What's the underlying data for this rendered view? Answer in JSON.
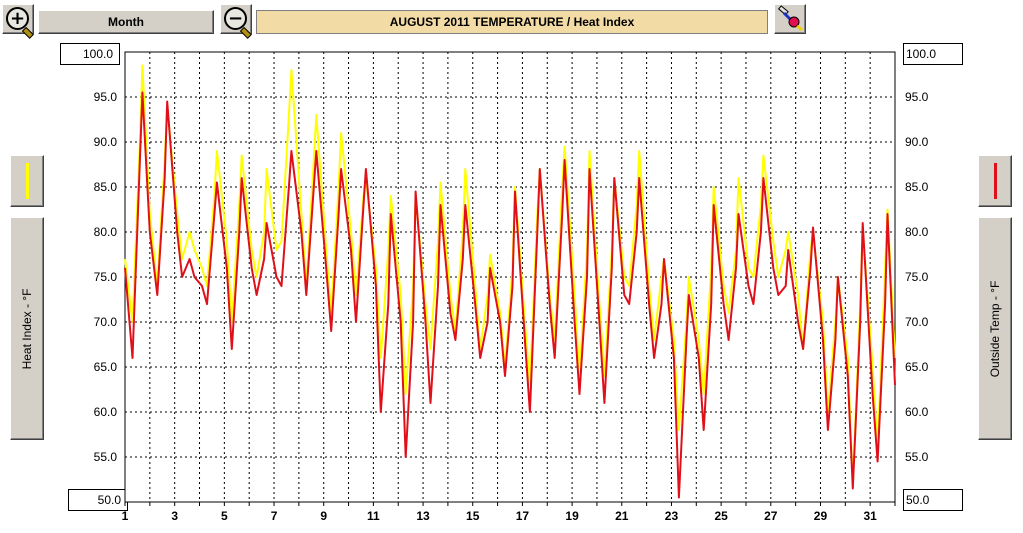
{
  "toolbar": {
    "zoom_in_icon": "zoom-in-magnifier-icon",
    "zoom_out_icon": "zoom-out-magnifier-icon",
    "period_button_label": "Month",
    "options_icon": "paint-brush-icon"
  },
  "colors": {
    "heat_index": "#ffff00",
    "outside_temp": "#e0101a",
    "title_bg": "#f3dba6",
    "button_face": "#d4d0c8"
  },
  "left_panel": {
    "axis_title": "Heat Index - °F",
    "swatch": "heat-index-legend"
  },
  "right_panel": {
    "axis_title": "Outside Temp - °F",
    "swatch": "outside-temp-legend"
  },
  "limits": {
    "left_top": "100.0",
    "left_bottom": "50.0",
    "right_top": "100.0",
    "right_bottom": "50.0"
  },
  "chart_data": {
    "type": "line",
    "title": "AUGUST 2011  TEMPERATURE / Heat Index",
    "xlabel": "",
    "ylabel_left": "Heat Index - °F",
    "ylabel_right": "Outside Temp - °F",
    "xlim": [
      1,
      32
    ],
    "ylim": [
      50,
      100
    ],
    "grid": true,
    "x_ticks": [
      "1",
      "3",
      "5",
      "7",
      "9",
      "11",
      "13",
      "15",
      "17",
      "19",
      "21",
      "23",
      "25",
      "27",
      "29",
      "31"
    ],
    "y_ticks": [
      "95.0",
      "90.0",
      "85.0",
      "80.0",
      "75.0",
      "70.0",
      "65.0",
      "60.0",
      "55.0"
    ],
    "series": [
      {
        "name": "Heat Index",
        "color": "#ffff00",
        "x": [
          1.0,
          1.3,
          1.6,
          1.7,
          2.0,
          2.3,
          2.6,
          2.7,
          3.1,
          3.3,
          3.6,
          3.8,
          4.1,
          4.3,
          4.6,
          4.7,
          5.1,
          5.3,
          5.6,
          5.7,
          6.1,
          6.3,
          6.6,
          6.7,
          7.1,
          7.3,
          7.6,
          7.7,
          8.1,
          8.3,
          8.6,
          8.7,
          9.1,
          9.3,
          9.6,
          9.7,
          10.1,
          10.3,
          10.6,
          10.7,
          11.1,
          11.3,
          11.6,
          11.7,
          12.1,
          12.3,
          12.6,
          12.7,
          13.1,
          13.3,
          13.6,
          13.7,
          14.1,
          14.3,
          14.6,
          14.7,
          15.1,
          15.3,
          15.6,
          15.7,
          16.1,
          16.3,
          16.6,
          16.7,
          17.1,
          17.3,
          17.6,
          17.7,
          18.1,
          18.3,
          18.6,
          18.7,
          19.1,
          19.3,
          19.6,
          19.7,
          20.1,
          20.3,
          20.6,
          20.7,
          21.1,
          21.3,
          21.6,
          21.7,
          22.1,
          22.3,
          22.6,
          22.7,
          23.1,
          23.3,
          23.6,
          23.7,
          24.1,
          24.3,
          24.6,
          24.7,
          25.1,
          25.3,
          25.6,
          25.7,
          26.1,
          26.3,
          26.6,
          26.7,
          27.1,
          27.3,
          27.6,
          27.7,
          28.1,
          28.3,
          28.6,
          28.7,
          29.1,
          29.3,
          29.6,
          29.7,
          30.1,
          30.3,
          30.6,
          30.7,
          31.1,
          31.3,
          31.6,
          31.7,
          32.0
        ],
        "values": [
          77.0,
          70.0,
          90.0,
          98.5,
          82.0,
          74.0,
          88.0,
          94.0,
          82.0,
          77.0,
          80.0,
          78.0,
          76.0,
          74.0,
          84.0,
          89.0,
          79.0,
          70.0,
          83.0,
          88.5,
          78.0,
          75.0,
          80.0,
          87.0,
          78.0,
          79.0,
          93.0,
          98.0,
          82.0,
          74.0,
          88.0,
          93.0,
          78.0,
          71.0,
          85.0,
          91.0,
          80.0,
          73.0,
          84.0,
          86.0,
          76.0,
          66.0,
          78.0,
          84.0,
          73.0,
          62.0,
          74.0,
          84.0,
          72.0,
          67.0,
          79.0,
          85.5,
          73.0,
          69.0,
          80.0,
          87.0,
          74.0,
          67.0,
          73.0,
          77.5,
          71.0,
          65.0,
          76.0,
          85.0,
          70.0,
          63.0,
          82.0,
          87.0,
          73.0,
          68.0,
          85.0,
          89.5,
          73.0,
          64.0,
          78.0,
          89.0,
          72.0,
          64.0,
          78.0,
          86.0,
          75.0,
          74.0,
          83.0,
          89.0,
          74.0,
          68.0,
          75.0,
          77.0,
          68.0,
          58.0,
          70.0,
          75.0,
          68.0,
          62.0,
          76.0,
          85.0,
          74.0,
          71.0,
          78.0,
          86.0,
          76.0,
          75.0,
          83.0,
          88.5,
          79.0,
          75.0,
          78.0,
          80.0,
          73.0,
          67.0,
          78.0,
          80.0,
          70.0,
          60.0,
          70.0,
          75.0,
          66.0,
          52.0,
          72.0,
          80.5,
          65.0,
          56.0,
          76.0,
          82.5,
          66.0
        ]
      },
      {
        "name": "Outside Temp",
        "color": "#e0101a",
        "x": [
          1.0,
          1.3,
          1.6,
          1.7,
          2.0,
          2.3,
          2.6,
          2.7,
          3.1,
          3.3,
          3.6,
          3.8,
          4.1,
          4.3,
          4.6,
          4.7,
          5.1,
          5.3,
          5.6,
          5.7,
          6.1,
          6.3,
          6.6,
          6.7,
          7.1,
          7.3,
          7.6,
          7.7,
          8.1,
          8.3,
          8.6,
          8.7,
          9.1,
          9.3,
          9.6,
          9.7,
          10.1,
          10.3,
          10.6,
          10.7,
          11.1,
          11.3,
          11.6,
          11.7,
          12.1,
          12.3,
          12.6,
          12.7,
          13.1,
          13.3,
          13.6,
          13.7,
          14.1,
          14.3,
          14.6,
          14.7,
          15.1,
          15.3,
          15.6,
          15.7,
          16.1,
          16.3,
          16.6,
          16.7,
          17.1,
          17.3,
          17.6,
          17.7,
          18.1,
          18.3,
          18.6,
          18.7,
          19.1,
          19.3,
          19.6,
          19.7,
          20.1,
          20.3,
          20.6,
          20.7,
          21.1,
          21.3,
          21.6,
          21.7,
          22.1,
          22.3,
          22.6,
          22.7,
          23.1,
          23.3,
          23.6,
          23.7,
          24.1,
          24.3,
          24.6,
          24.7,
          25.1,
          25.3,
          25.6,
          25.7,
          26.1,
          26.3,
          26.6,
          26.7,
          27.1,
          27.3,
          27.6,
          27.7,
          28.1,
          28.3,
          28.6,
          28.7,
          29.1,
          29.3,
          29.6,
          29.7,
          30.1,
          30.3,
          30.6,
          30.7,
          31.1,
          31.3,
          31.6,
          31.7,
          32.0
        ],
        "values": [
          76.0,
          66.0,
          88.0,
          95.5,
          80.0,
          73.0,
          86.0,
          94.5,
          80.0,
          75.0,
          77.0,
          75.0,
          74.0,
          72.0,
          82.0,
          85.5,
          76.0,
          67.0,
          80.0,
          86.0,
          76.0,
          73.0,
          77.0,
          81.0,
          75.0,
          74.0,
          85.0,
          89.0,
          80.0,
          73.0,
          85.0,
          89.0,
          76.0,
          69.0,
          82.0,
          87.0,
          78.0,
          70.0,
          83.0,
          87.0,
          74.0,
          60.0,
          72.0,
          82.0,
          70.0,
          55.0,
          70.0,
          84.5,
          70.0,
          61.0,
          74.0,
          83.0,
          71.0,
          68.0,
          77.0,
          83.0,
          72.0,
          66.0,
          70.0,
          76.0,
          70.0,
          64.0,
          74.0,
          84.5,
          68.0,
          60.0,
          80.0,
          87.0,
          72.0,
          66.0,
          82.0,
          88.0,
          70.0,
          62.0,
          75.0,
          87.0,
          70.0,
          61.0,
          76.0,
          86.0,
          73.0,
          72.0,
          80.0,
          86.0,
          72.0,
          66.0,
          72.0,
          77.0,
          66.0,
          50.5,
          68.0,
          73.0,
          66.0,
          58.0,
          72.0,
          83.0,
          72.0,
          68.0,
          76.0,
          82.0,
          74.0,
          72.0,
          80.0,
          86.0,
          76.0,
          73.0,
          74.0,
          78.0,
          70.0,
          67.0,
          76.0,
          80.5,
          68.0,
          58.0,
          68.0,
          75.0,
          64.0,
          51.5,
          70.0,
          81.0,
          62.0,
          54.5,
          72.0,
          82.0,
          63.0
        ]
      }
    ]
  }
}
